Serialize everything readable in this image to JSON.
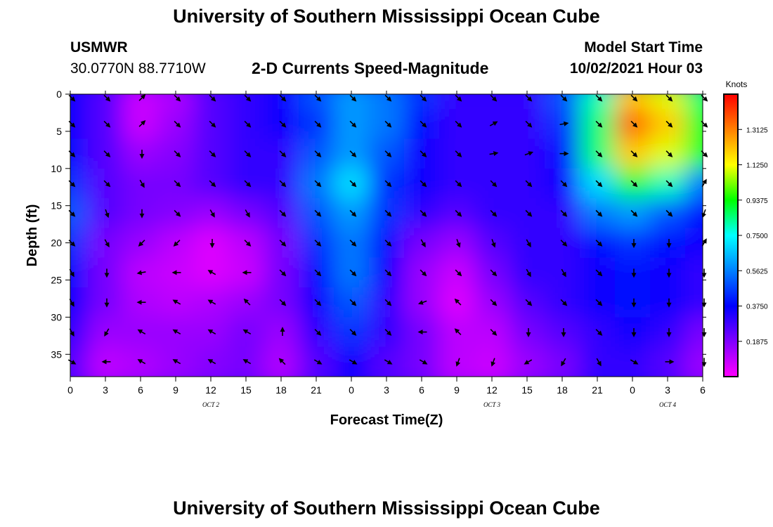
{
  "header": {
    "title_top": "University of Southern Mississippi Ocean Cube",
    "station": "USMWR",
    "coords": "30.0770N  88.7710W",
    "subtitle": "2-D Currents Speed-Magnitude",
    "model_label": "Model Start Time",
    "model_time": "10/02/2021 Hour 03",
    "title_bottom": "University of Southern Mississippi Ocean Cube"
  },
  "chart_data": {
    "type": "heatmap",
    "title": "2-D Currents Speed-Magnitude",
    "xlabel": "Forecast Time(Z)",
    "ylabel": "Depth (ft)",
    "x_tick_labels": [
      "0",
      "3",
      "6",
      "9",
      "12",
      "15",
      "18",
      "21",
      "0",
      "3",
      "6",
      "9",
      "12",
      "15",
      "18",
      "21",
      "0",
      "3",
      "6"
    ],
    "date_labels": [
      {
        "label": "OCT 2",
        "at_index": 4
      },
      {
        "label": "OCT 3",
        "at_index": 12
      },
      {
        "label": "OCT 4",
        "at_index": 17
      }
    ],
    "y_ticks": [
      0,
      5,
      10,
      15,
      20,
      25,
      30,
      35
    ],
    "ylim": [
      38,
      0
    ],
    "colorbar": {
      "label": "Knots",
      "ticks": [
        "1.3125",
        "1.1250",
        "0.9375",
        "0.7500",
        "0.5625",
        "0.3750",
        "0.1875"
      ],
      "min": 0,
      "max": 1.5
    },
    "depths_ft": [
      0,
      4,
      8,
      12,
      16,
      20,
      24,
      28,
      32,
      36
    ],
    "speed_grid": [
      [
        0.35,
        0.25,
        0.08,
        0.12,
        0.25,
        0.3,
        0.35,
        0.5,
        0.6,
        0.55,
        0.45,
        0.3,
        0.3,
        0.3,
        0.5,
        0.8,
        1.2,
        1.1,
        0.85
      ],
      [
        0.35,
        0.25,
        0.08,
        0.15,
        0.25,
        0.3,
        0.35,
        0.45,
        0.6,
        0.55,
        0.4,
        0.3,
        0.3,
        0.3,
        0.45,
        0.85,
        1.35,
        1.2,
        0.9
      ],
      [
        0.4,
        0.25,
        0.15,
        0.18,
        0.25,
        0.3,
        0.3,
        0.5,
        0.6,
        0.5,
        0.35,
        0.3,
        0.3,
        0.3,
        0.4,
        0.85,
        1.2,
        1.1,
        0.9
      ],
      [
        0.45,
        0.25,
        0.2,
        0.2,
        0.25,
        0.3,
        0.3,
        0.55,
        0.7,
        0.45,
        0.35,
        0.3,
        0.3,
        0.3,
        0.35,
        0.7,
        0.9,
        0.8,
        0.55
      ],
      [
        0.5,
        0.25,
        0.2,
        0.18,
        0.15,
        0.2,
        0.25,
        0.5,
        0.6,
        0.45,
        0.3,
        0.25,
        0.3,
        0.3,
        0.3,
        0.55,
        0.6,
        0.5,
        0.4
      ],
      [
        0.45,
        0.2,
        0.15,
        0.1,
        0.05,
        0.1,
        0.2,
        0.45,
        0.55,
        0.4,
        0.2,
        0.15,
        0.25,
        0.3,
        0.3,
        0.4,
        0.45,
        0.4,
        0.35
      ],
      [
        0.4,
        0.2,
        0.1,
        0.08,
        0.05,
        0.08,
        0.2,
        0.4,
        0.55,
        0.35,
        0.15,
        0.08,
        0.2,
        0.3,
        0.3,
        0.35,
        0.4,
        0.35,
        0.3
      ],
      [
        0.35,
        0.2,
        0.12,
        0.1,
        0.12,
        0.15,
        0.2,
        0.35,
        0.5,
        0.3,
        0.15,
        0.05,
        0.15,
        0.25,
        0.3,
        0.35,
        0.4,
        0.35,
        0.3
      ],
      [
        0.3,
        0.15,
        0.15,
        0.15,
        0.15,
        0.2,
        0.15,
        0.3,
        0.45,
        0.3,
        0.2,
        0.1,
        0.1,
        0.2,
        0.25,
        0.3,
        0.35,
        0.3,
        0.2
      ],
      [
        0.25,
        0.1,
        0.12,
        0.15,
        0.18,
        0.2,
        0.12,
        0.25,
        0.35,
        0.25,
        0.2,
        0.1,
        0.08,
        0.15,
        0.2,
        0.3,
        0.3,
        0.25,
        0.15
      ]
    ],
    "vector_depths_ft": [
      0.5,
      4,
      8,
      12,
      16,
      20,
      24,
      28,
      32,
      36
    ],
    "vector_direction_deg": [
      [
        135,
        135,
        45,
        135,
        135,
        135,
        135,
        135,
        135,
        135,
        135,
        135,
        135,
        135,
        135,
        135,
        135,
        135,
        135
      ],
      [
        135,
        135,
        45,
        135,
        135,
        135,
        135,
        135,
        135,
        135,
        135,
        135,
        60,
        135,
        80,
        135,
        135,
        135,
        135
      ],
      [
        135,
        135,
        180,
        135,
        135,
        135,
        135,
        135,
        135,
        135,
        135,
        135,
        80,
        70,
        90,
        135,
        135,
        135,
        135
      ],
      [
        135,
        135,
        150,
        135,
        135,
        135,
        135,
        135,
        135,
        135,
        135,
        135,
        135,
        135,
        135,
        135,
        135,
        135,
        30
      ],
      [
        135,
        160,
        180,
        135,
        150,
        150,
        135,
        135,
        135,
        135,
        135,
        135,
        135,
        135,
        135,
        135,
        135,
        135,
        200
      ],
      [
        135,
        150,
        225,
        225,
        180,
        135,
        135,
        135,
        135,
        135,
        150,
        160,
        160,
        150,
        135,
        135,
        180,
        180,
        30
      ],
      [
        150,
        180,
        260,
        270,
        300,
        270,
        135,
        135,
        135,
        135,
        135,
        135,
        135,
        150,
        150,
        135,
        180,
        180,
        180
      ],
      [
        150,
        180,
        270,
        300,
        300,
        315,
        135,
        135,
        135,
        135,
        250,
        315,
        135,
        135,
        135,
        135,
        180,
        180,
        180
      ],
      [
        150,
        210,
        300,
        300,
        300,
        300,
        0,
        135,
        135,
        135,
        270,
        315,
        135,
        180,
        180,
        135,
        180,
        180,
        180
      ],
      [
        120,
        270,
        300,
        300,
        300,
        300,
        315,
        120,
        120,
        120,
        120,
        200,
        200,
        240,
        210,
        150,
        120,
        90,
        180
      ]
    ]
  }
}
